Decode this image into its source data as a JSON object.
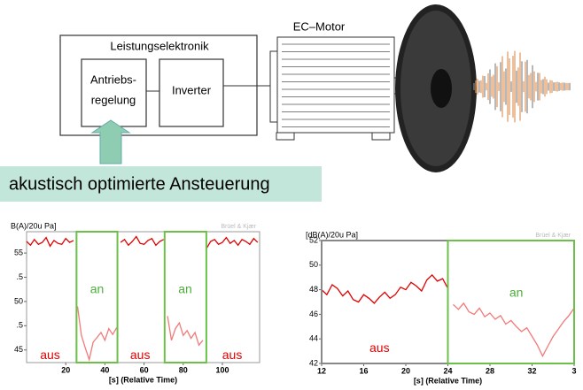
{
  "diagram": {
    "outer_box": "Leistungselektronik",
    "control_box": [
      "Antriebs-",
      "regelung"
    ],
    "inverter_box": "Inverter",
    "motor": "EC–Motor",
    "banner": "akustisch optimierte Ansteuerung"
  },
  "chart_data": [
    {
      "type": "line",
      "ylabel": "B(A)/20u Pa]",
      "xlabel": "[s] (Relative Time)",
      "watermark": "Brüel & Kjær",
      "xlim": [
        0,
        119
      ],
      "ylim": [
        43.7,
        57.2
      ],
      "xticks": [
        20,
        40,
        60,
        80,
        100
      ],
      "yticks": [
        55,
        {
          "value": 52.5,
          "label": ".5"
        },
        50,
        {
          "value": 47.5,
          "label": ".5"
        },
        45
      ],
      "regions": [
        {
          "x": [
            25.5,
            46.4
          ],
          "color": "#6cc04a"
        },
        {
          "x": [
            70.5,
            91.8
          ],
          "color": "#6cc04a"
        }
      ],
      "annotations": [
        {
          "text": "aus",
          "x": 12,
          "y": 44.4,
          "color": "#e00000"
        },
        {
          "text": "an",
          "x": 36,
          "y": 51.2,
          "color": "#4caf3a"
        },
        {
          "text": "aus",
          "x": 58,
          "y": 44.4,
          "color": "#e00000"
        },
        {
          "text": "an",
          "x": 81,
          "y": 51.2,
          "color": "#4caf3a"
        },
        {
          "text": "aus",
          "x": 105,
          "y": 44.4,
          "color": "#e00000"
        }
      ],
      "x": [
        0,
        2,
        4,
        6,
        8,
        10,
        12,
        14,
        16,
        18,
        20,
        22,
        24,
        26,
        28,
        30,
        32,
        34,
        36,
        38,
        40,
        42,
        44,
        46,
        48,
        50,
        52,
        54,
        56,
        58,
        60,
        62,
        64,
        66,
        68,
        70,
        72,
        74,
        76,
        78,
        80,
        82,
        84,
        86,
        88,
        90,
        92,
        94,
        96,
        98,
        100,
        102,
        104,
        106,
        108,
        110,
        112,
        114,
        116,
        118
      ],
      "series": [
        {
          "color": "#e00000",
          "values": [
            56.2,
            55.8,
            56.4,
            55.9,
            56.1,
            56.6,
            55.7,
            56.3,
            56.0,
            55.9,
            56.5,
            56.1,
            56.3,
            null,
            null,
            null,
            null,
            null,
            null,
            null,
            null,
            null,
            null,
            null,
            56.1,
            56.4,
            55.8,
            56.2,
            56.7,
            56.0,
            55.9,
            56.3,
            56.5,
            55.8,
            56.2,
            56.4,
            null,
            null,
            null,
            null,
            null,
            null,
            null,
            null,
            null,
            null,
            55.5,
            56.2,
            56.4,
            55.9,
            56.1,
            56.6,
            56.0,
            56.3,
            55.8,
            56.4,
            56.2,
            55.9,
            56.5,
            56.1
          ]
        },
        {
          "color": "#f27a7a",
          "values": [
            null,
            null,
            null,
            null,
            null,
            null,
            null,
            null,
            null,
            null,
            null,
            null,
            null,
            49.5,
            46.5,
            45.2,
            44.0,
            45.8,
            46.3,
            46.8,
            46.0,
            47.2,
            46.6,
            47.3,
            null,
            null,
            null,
            null,
            null,
            null,
            null,
            null,
            null,
            null,
            null,
            null,
            48.5,
            46.0,
            47.2,
            47.8,
            46.5,
            47.0,
            46.2,
            46.8,
            45.5,
            46.0,
            null,
            null,
            null,
            null,
            null,
            null,
            null,
            null,
            null,
            null,
            null,
            null,
            null,
            null
          ]
        }
      ]
    },
    {
      "type": "line",
      "ylabel": "[dB(A)/20u Pa]",
      "xlabel": "[s] (Relative Time)",
      "watermark": "Brüel & Kjær",
      "xlim": [
        12,
        36
      ],
      "ylim": [
        42,
        52
      ],
      "xticks": [
        12,
        16,
        20,
        24,
        28,
        32,
        {
          "value": 36,
          "label": "3"
        }
      ],
      "yticks": [
        42,
        44,
        46,
        48,
        50,
        52
      ],
      "regions": [
        {
          "x": [
            12,
            24
          ],
          "color": "#888888"
        },
        {
          "x": [
            24,
            36
          ],
          "color": "#6cc04a"
        }
      ],
      "annotations": [
        {
          "text": "aus",
          "x": 17.5,
          "y": 43.2,
          "color": "#e00000"
        },
        {
          "text": "an",
          "x": 30.5,
          "y": 47.7,
          "color": "#4caf3a"
        }
      ],
      "x": [
        12,
        12.5,
        13,
        13.5,
        14,
        14.5,
        15,
        15.5,
        16,
        16.5,
        17,
        17.5,
        18,
        18.5,
        19,
        19.5,
        20,
        20.5,
        21,
        21.5,
        22,
        22.5,
        23,
        23.5,
        24,
        24.5,
        25,
        25.5,
        26,
        26.5,
        27,
        27.5,
        28,
        28.5,
        29,
        29.5,
        30,
        30.5,
        31,
        31.5,
        32,
        32.5,
        33,
        33.5,
        34,
        34.5,
        35,
        35.5,
        36
      ],
      "series": [
        {
          "color": "#e00000",
          "values": [
            48.0,
            47.6,
            48.4,
            48.1,
            47.5,
            47.9,
            47.2,
            47.0,
            47.6,
            47.3,
            46.9,
            47.4,
            47.8,
            47.3,
            47.6,
            48.2,
            48.0,
            48.6,
            48.3,
            47.9,
            48.8,
            49.2,
            48.7,
            48.9,
            48.1,
            null,
            null,
            null,
            null,
            null,
            null,
            null,
            null,
            null,
            null,
            null,
            null,
            null,
            null,
            null,
            null,
            null,
            null,
            null,
            null,
            null,
            null,
            null,
            null
          ]
        },
        {
          "color": "#f27a7a",
          "values": [
            null,
            null,
            null,
            null,
            null,
            null,
            null,
            null,
            null,
            null,
            null,
            null,
            null,
            null,
            null,
            null,
            null,
            null,
            null,
            null,
            null,
            null,
            null,
            null,
            null,
            46.8,
            46.4,
            46.9,
            46.2,
            46.0,
            46.5,
            45.8,
            46.1,
            45.6,
            45.9,
            45.2,
            45.5,
            45.0,
            44.6,
            44.9,
            44.2,
            43.5,
            42.6,
            43.4,
            44.2,
            44.8,
            45.4,
            45.9,
            46.5
          ]
        }
      ]
    }
  ]
}
